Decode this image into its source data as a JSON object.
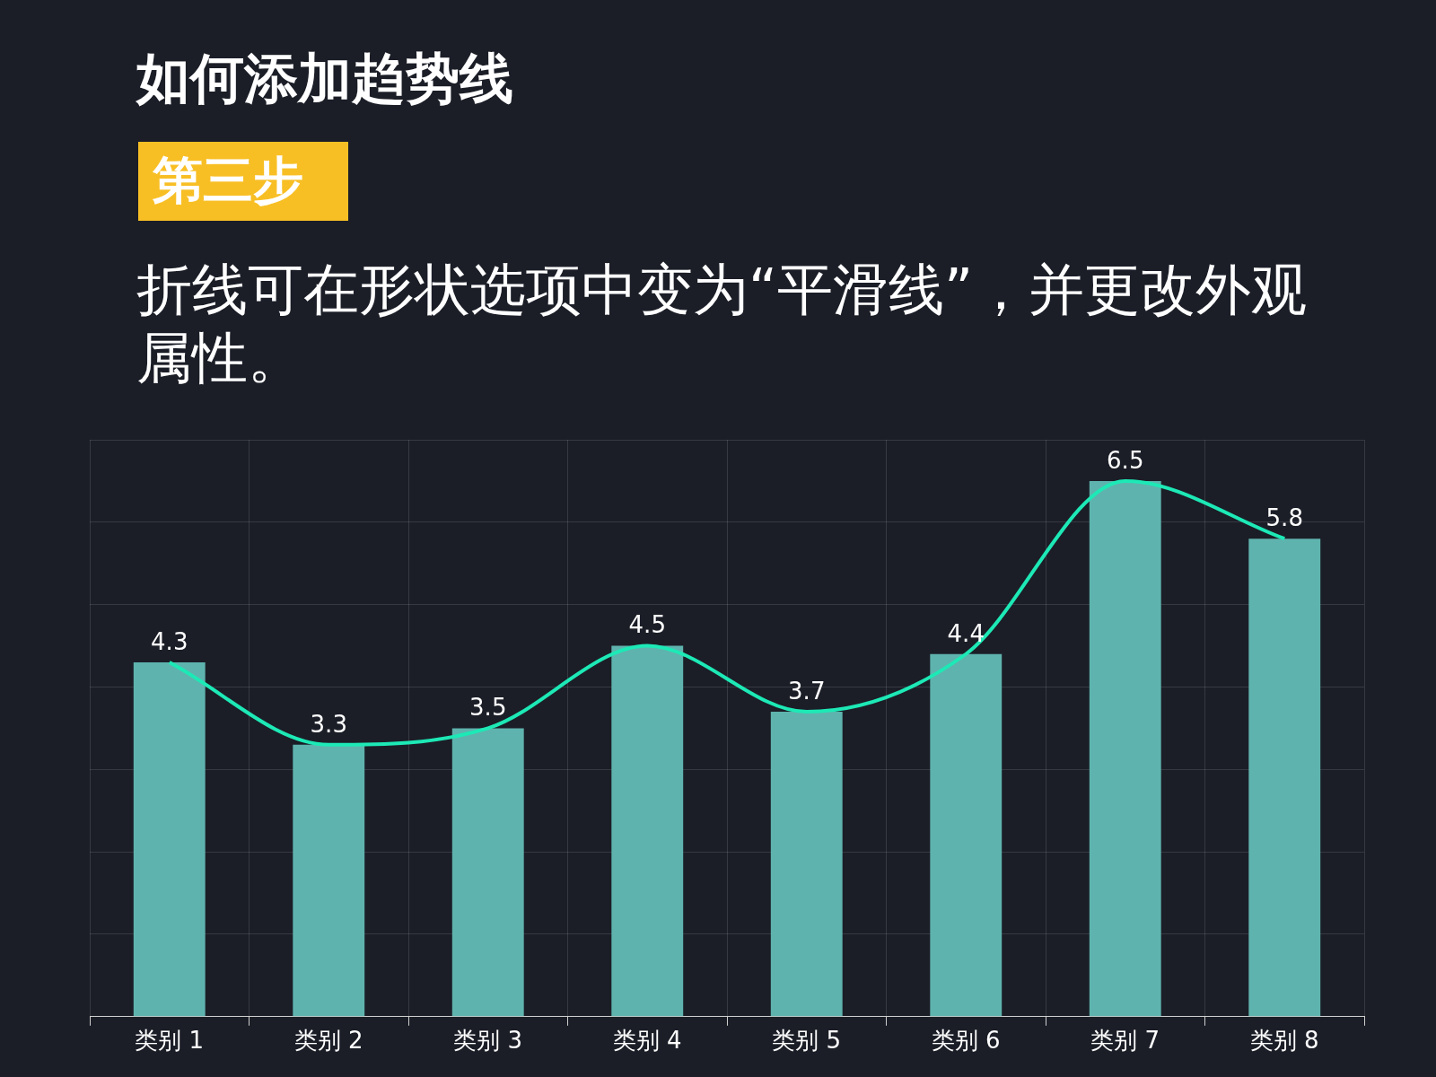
{
  "chart_data": {
    "type": "bar",
    "title": "如何添加趋势线",
    "subtitle": "第三步",
    "annotations": [
      "折线可在形状选项中变为“平滑线”，并更改外观属性。"
    ],
    "categories": [
      "类别 1",
      "类别 2",
      "类别 3",
      "类别 4",
      "类别 5",
      "类别 6",
      "类别 7",
      "类别 8"
    ],
    "series": [
      {
        "color": "#5fb3ae",
        "values": [
          4.3,
          3.3,
          3.5,
          4.5,
          3.7,
          4.4,
          6.5,
          5.8
        ]
      },
      {
        "type": "line",
        "color": "#1de9b6",
        "values": [
          4.3,
          3.3,
          3.5,
          4.5,
          3.7,
          4.4,
          6.5,
          5.8
        ],
        "value_labels": [
          "4.3",
          "3.3",
          "3.5",
          "4.5",
          "3.7",
          "4.4",
          "6.5",
          "5.8"
        ]
      }
    ],
    "tick_labels": "x",
    "grid": true,
    "marker": "none",
    "line_style": "solid",
    "legend": false
  }
}
